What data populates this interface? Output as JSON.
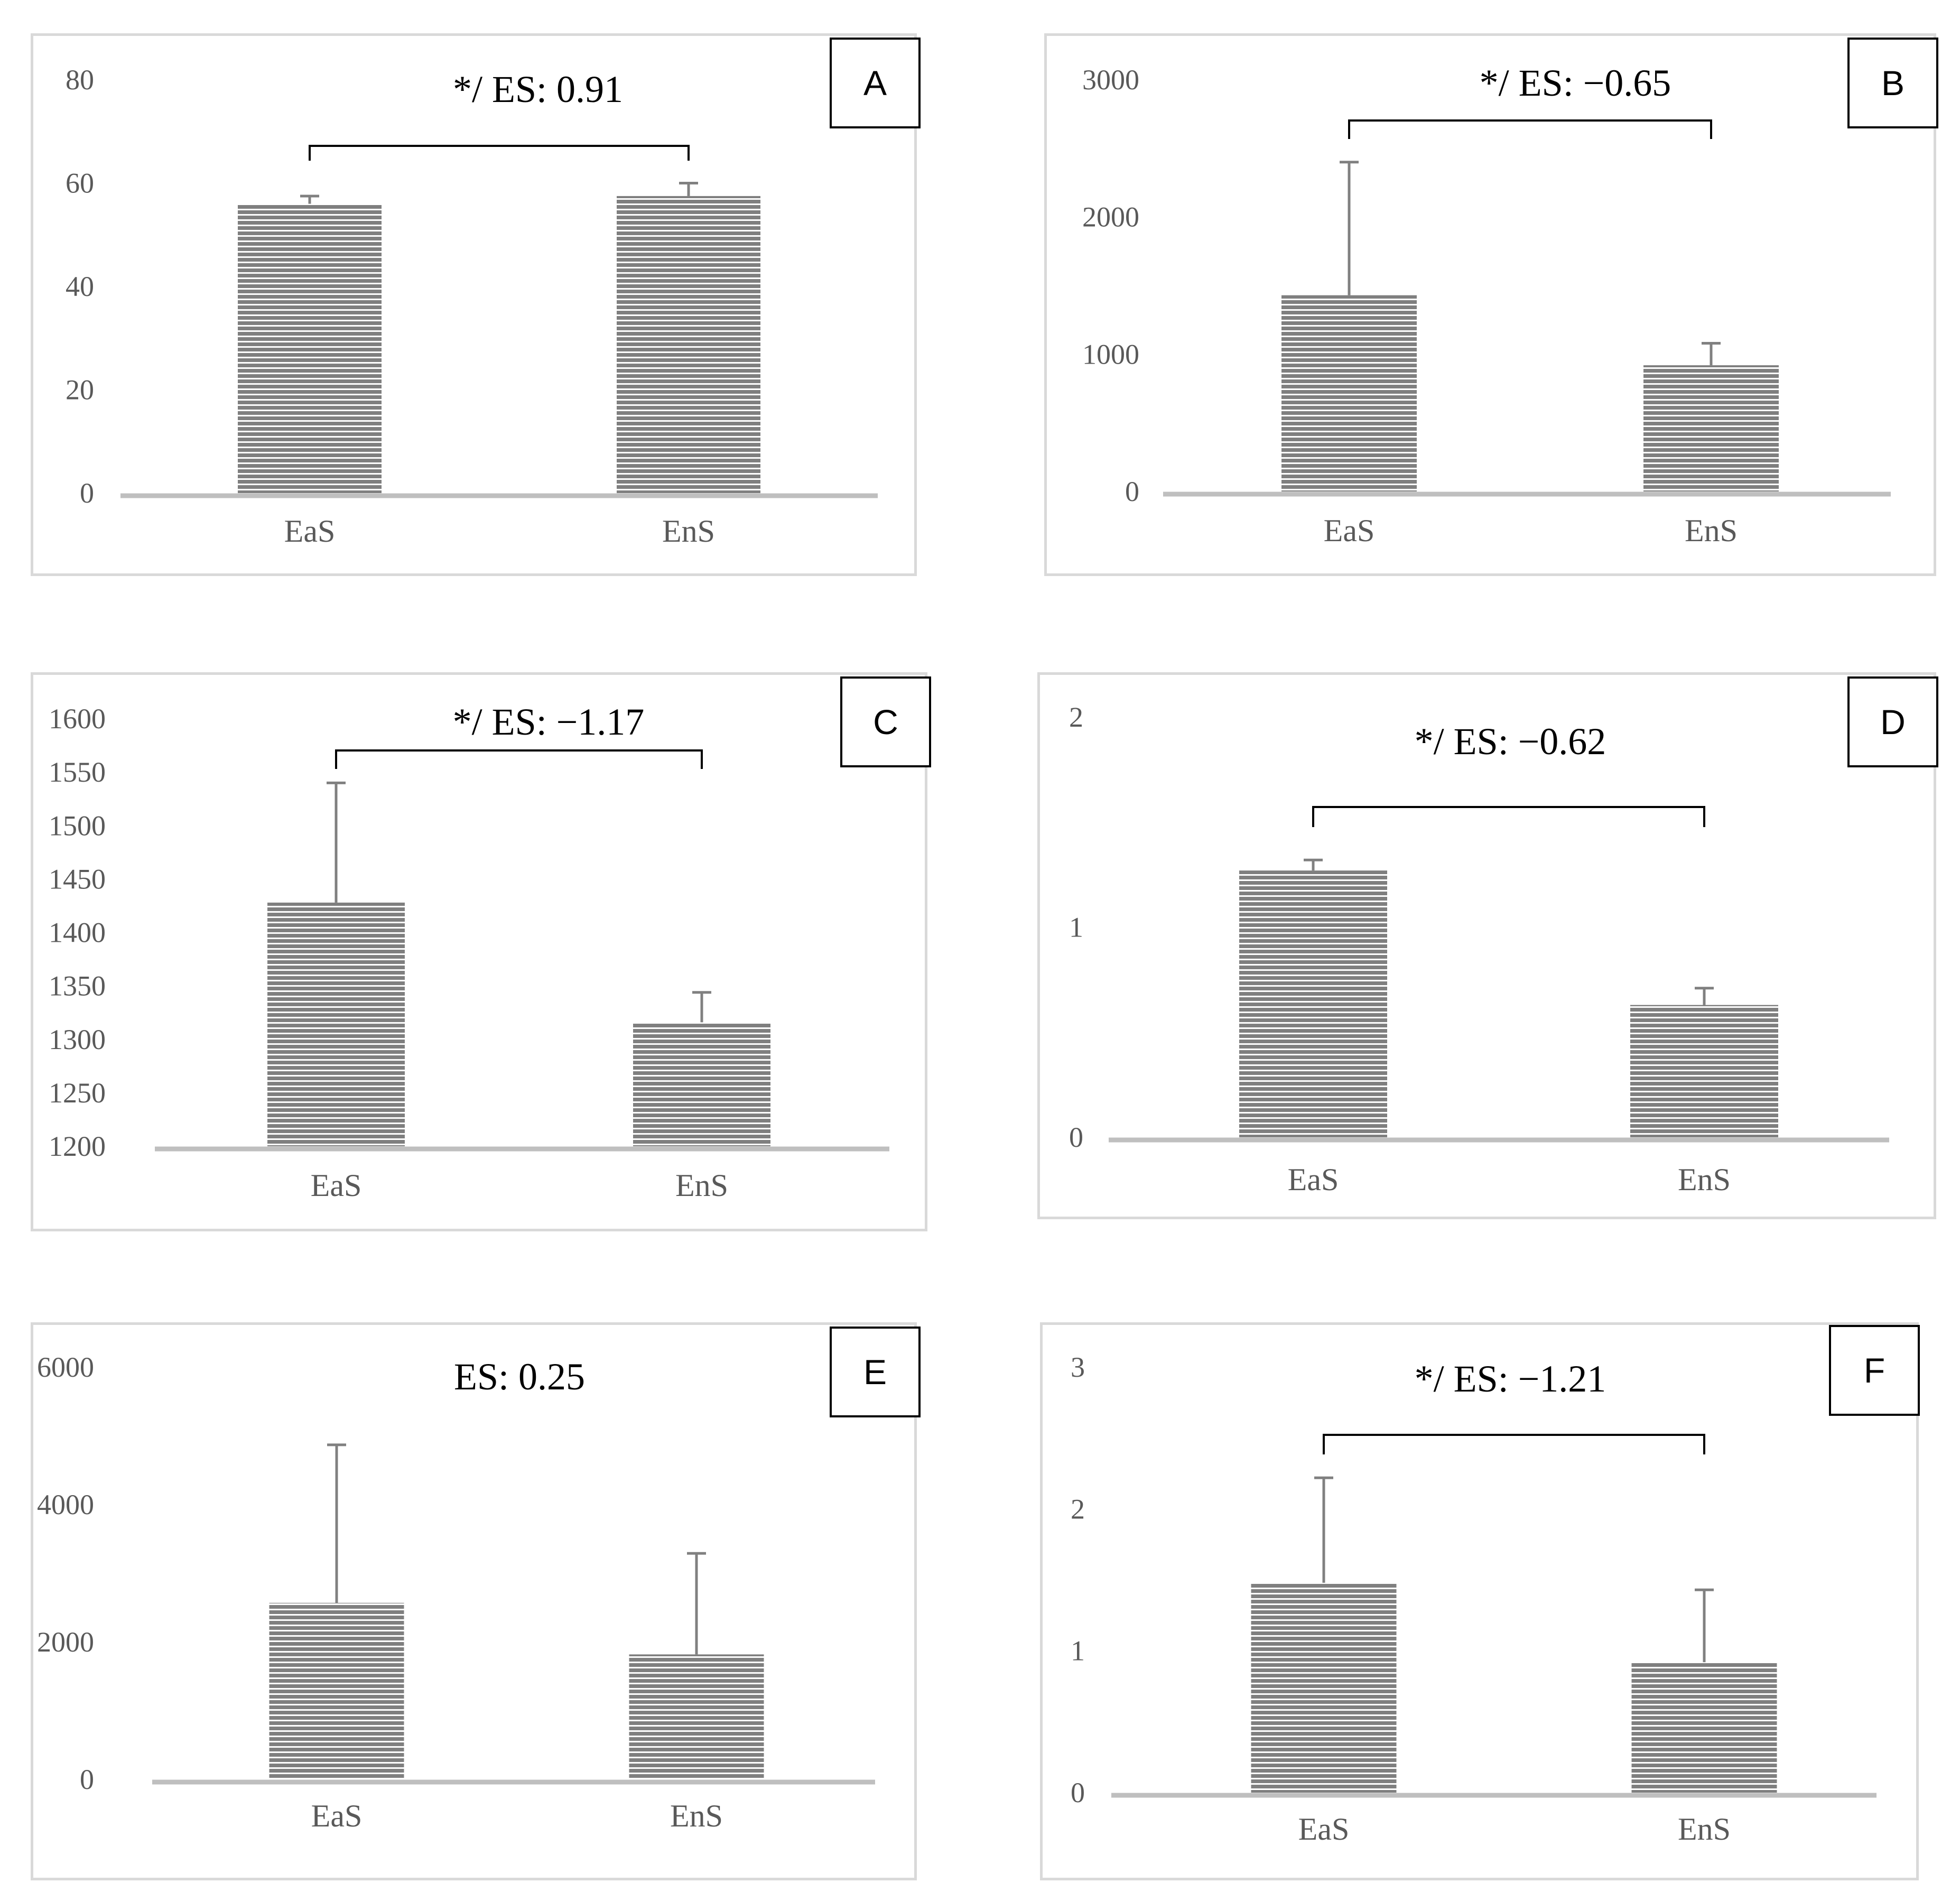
{
  "colors": {
    "bar": "#7f7f7f",
    "axis": "#bfbfbf",
    "error": "#808080",
    "frame": "#d9d9d9"
  },
  "chart_data": [
    {
      "panel": "A",
      "type": "bar",
      "categories": [
        "EaS",
        "EnS"
      ],
      "values": [
        56,
        57.5
      ],
      "errors": [
        1.5,
        2.5
      ],
      "ylim": [
        0,
        80
      ],
      "yticks": [
        "0",
        "20",
        "40",
        "60",
        "80"
      ],
      "annotation": "*/ ES: 0.91",
      "bracket": true
    },
    {
      "panel": "B",
      "type": "bar",
      "categories": [
        "EaS",
        "EnS"
      ],
      "values": [
        1430,
        920
      ],
      "errors": [
        970,
        160
      ],
      "ylim": [
        0,
        3000
      ],
      "yticks": [
        "0",
        "1000",
        "2000",
        "3000"
      ],
      "annotation": "*/ ES: −0.65",
      "bracket": true
    },
    {
      "panel": "C",
      "type": "bar",
      "categories": [
        "EaS",
        "EnS"
      ],
      "values": [
        1428,
        1316
      ],
      "errors": [
        112,
        28
      ],
      "ylim": [
        1200,
        1600
      ],
      "yticks": [
        "1200",
        "1250",
        "1300",
        "1350",
        "1400",
        "1450",
        "1500",
        "1550",
        "1600"
      ],
      "annotation": "*/ ES: −1.17",
      "bracket": true
    },
    {
      "panel": "D",
      "type": "bar",
      "categories": [
        "EaS",
        "EnS"
      ],
      "values": [
        1.27,
        0.63
      ],
      "errors": [
        0.05,
        0.08
      ],
      "ylim": [
        0,
        2
      ],
      "yticks": [
        "0",
        "1",
        "2"
      ],
      "annotation": "*/ ES: −0.62",
      "bracket": true
    },
    {
      "panel": "E",
      "type": "bar",
      "categories": [
        "EaS",
        "EnS"
      ],
      "values": [
        2570,
        1820
      ],
      "errors": [
        2300,
        1470
      ],
      "ylim": [
        0,
        6000
      ],
      "yticks": [
        "0",
        "2000",
        "4000",
        "6000"
      ],
      "annotation": "ES: 0.25",
      "bracket": false
    },
    {
      "panel": "F",
      "type": "bar",
      "categories": [
        "EaS",
        "EnS"
      ],
      "values": [
        1.48,
        0.92
      ],
      "errors": [
        0.74,
        0.51
      ],
      "ylim": [
        0,
        3
      ],
      "yticks": [
        "0",
        "1",
        "2",
        "3"
      ],
      "annotation": "*/ ES: −1.21",
      "bracket": true
    }
  ]
}
